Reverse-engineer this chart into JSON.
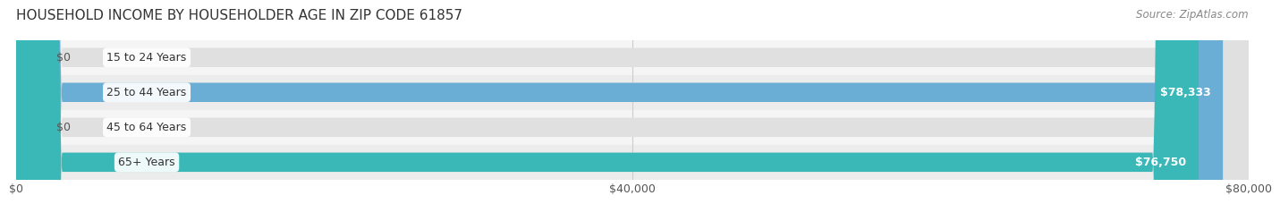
{
  "title": "HOUSEHOLD INCOME BY HOUSEHOLDER AGE IN ZIP CODE 61857",
  "source": "Source: ZipAtlas.com",
  "categories": [
    "15 to 24 Years",
    "25 to 44 Years",
    "45 to 64 Years",
    "65+ Years"
  ],
  "values": [
    0,
    78333,
    0,
    76750
  ],
  "labels": [
    "$0",
    "$78,333",
    "$0",
    "$76,750"
  ],
  "bar_colors": [
    "#f08090",
    "#6aaed6",
    "#c3a0d8",
    "#3ab8b8"
  ],
  "bg_row_colors": [
    "#f0f0f0",
    "#e8e8e8",
    "#f0f0f0",
    "#e8e8e8"
  ],
  "xmax": 80000,
  "xticks": [
    0,
    40000,
    80000
  ],
  "xticklabels": [
    "$0",
    "$40,000",
    "$80,000"
  ],
  "title_fontsize": 11,
  "label_fontsize": 9,
  "source_fontsize": 8.5,
  "background_color": "#ffffff"
}
